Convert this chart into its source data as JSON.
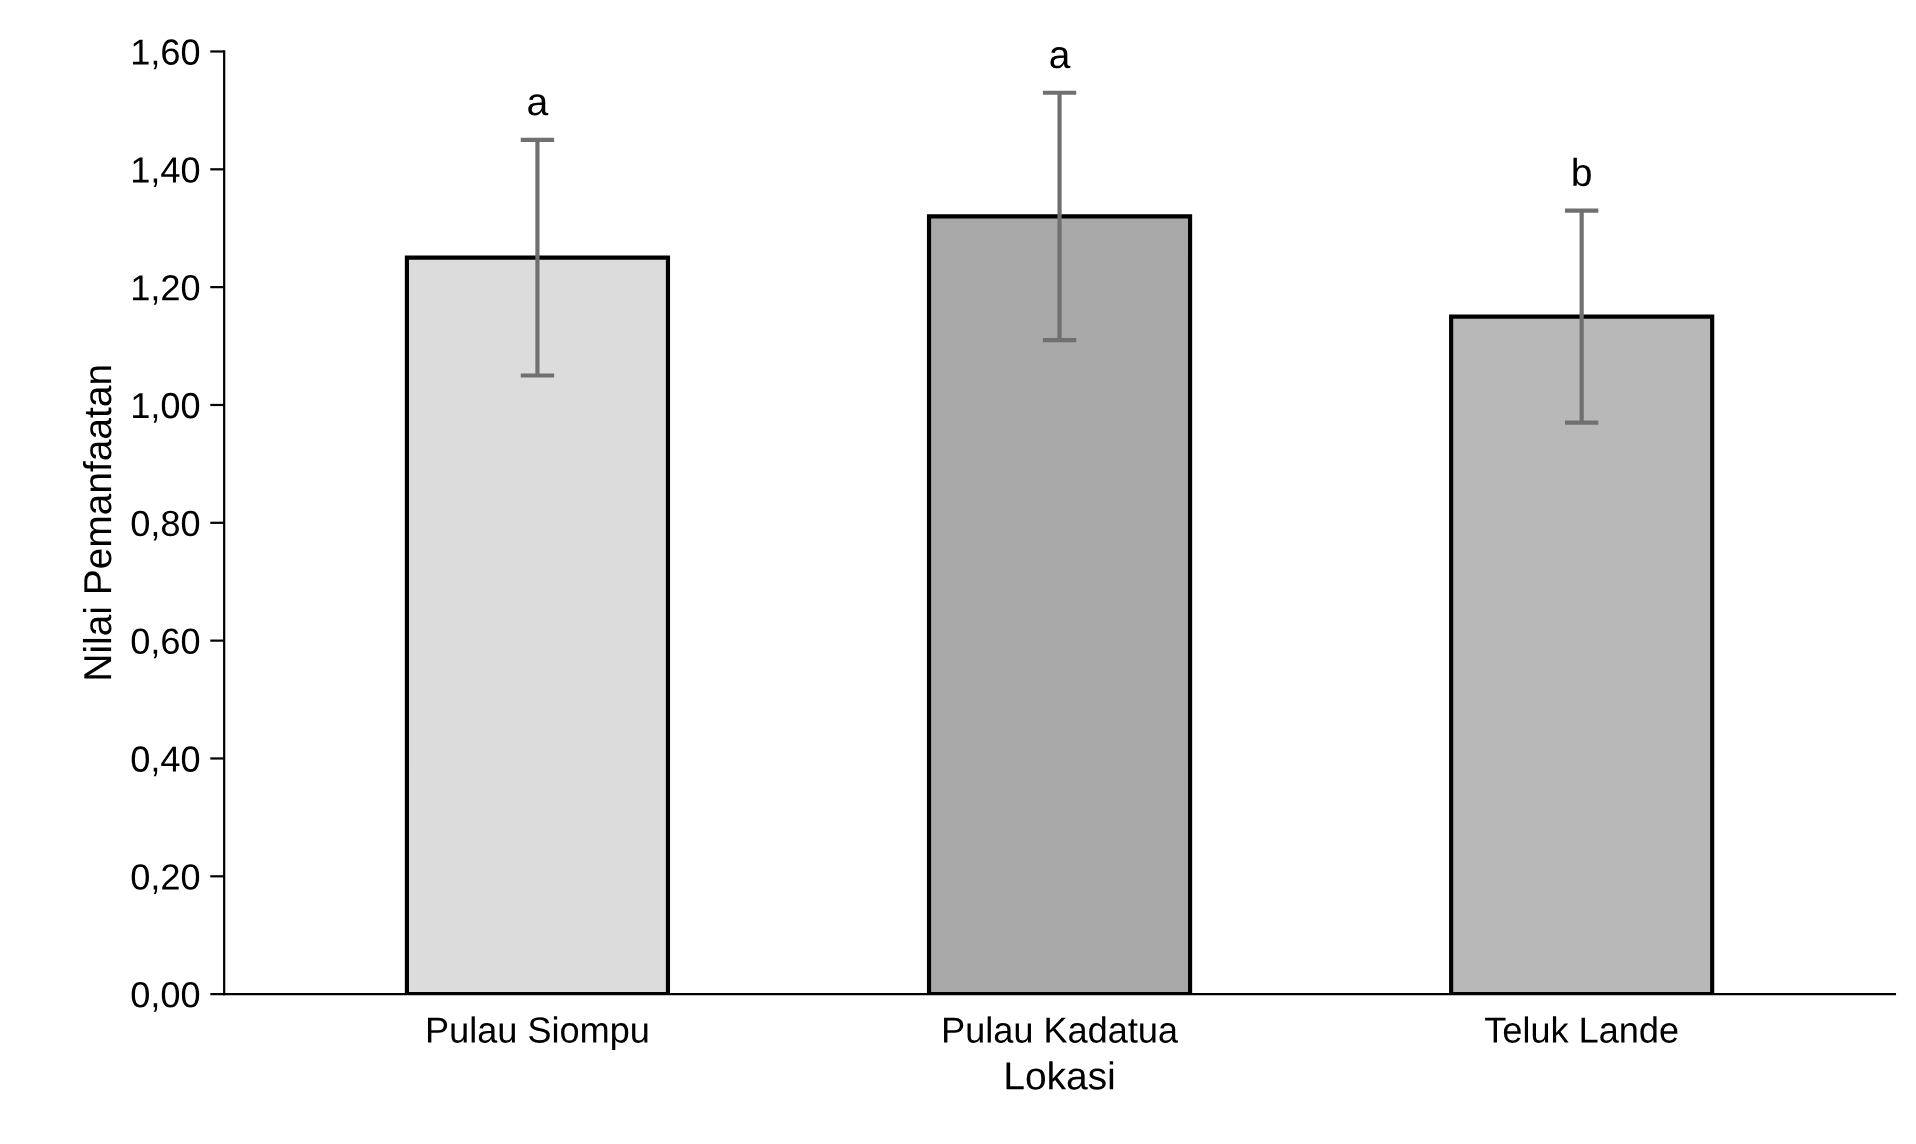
{
  "chart_data": {
    "type": "bar",
    "xlabel": "Lokasi",
    "ylabel": "Nilai Pemanfaatan",
    "categories": [
      "Pulau Siompu",
      "Pulau Kadatua",
      "Teluk Lande"
    ],
    "values": [
      1.25,
      1.32,
      1.15
    ],
    "errors": [
      0.2,
      0.21,
      0.18
    ],
    "colors": [
      "#dcdcdc",
      "#a8a8a8",
      "#b8b8b8"
    ],
    "ylim": [
      0,
      1.6
    ],
    "yticks": [
      {
        "value": 0,
        "label": "0,00"
      },
      {
        "value": 0.2,
        "label": "0,20"
      },
      {
        "value": 0.4,
        "label": "0,40"
      },
      {
        "value": 0.6,
        "label": "0,60"
      },
      {
        "value": 0.8,
        "label": "0,80"
      },
      {
        "value": 1.0,
        "label": "1,00"
      },
      {
        "value": 1.2,
        "label": "1,20"
      },
      {
        "value": 1.4,
        "label": "1,40"
      },
      {
        "value": 1.6,
        "label": "1,60"
      }
    ],
    "annotations": [
      {
        "text": "a",
        "x": "Pulau Siompu",
        "y": 1.45
      },
      {
        "text": "a",
        "x": "Pulau Kadatua",
        "y": 1.53
      },
      {
        "text": "b",
        "x": "Teluk Lande",
        "y": 1.33
      }
    ],
    "grid": false,
    "legend": false
  }
}
